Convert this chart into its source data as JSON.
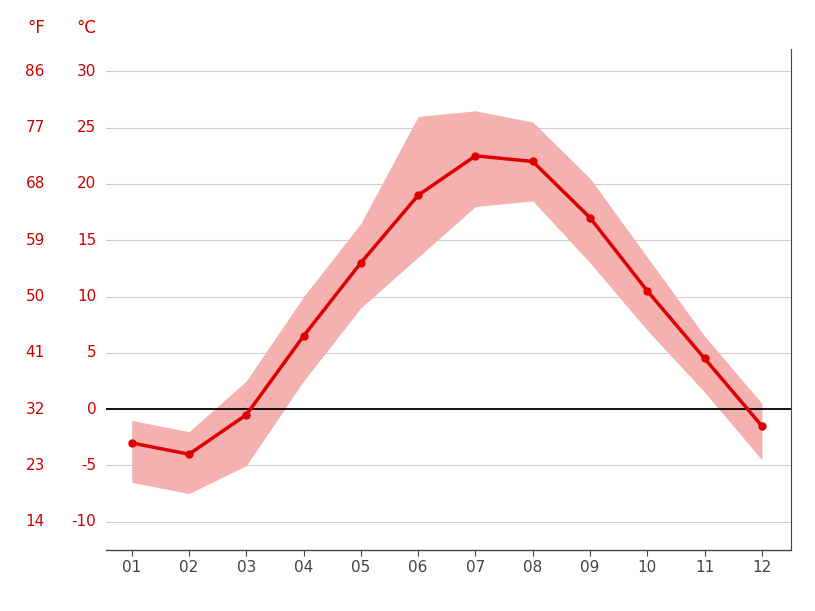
{
  "months": [
    1,
    2,
    3,
    4,
    5,
    6,
    7,
    8,
    9,
    10,
    11,
    12
  ],
  "month_labels": [
    "01",
    "02",
    "03",
    "04",
    "05",
    "06",
    "07",
    "08",
    "09",
    "10",
    "11",
    "12"
  ],
  "avg_temp_c": [
    -3.0,
    -4.0,
    -0.5,
    6.5,
    13.0,
    19.0,
    22.5,
    22.0,
    17.0,
    10.5,
    4.5,
    -1.5
  ],
  "max_temp_c": [
    -1.0,
    -2.0,
    2.5,
    10.0,
    16.5,
    26.0,
    26.5,
    25.5,
    20.5,
    13.5,
    6.5,
    0.5
  ],
  "min_temp_c": [
    -6.5,
    -7.5,
    -5.0,
    2.5,
    9.0,
    13.5,
    18.0,
    18.5,
    13.0,
    7.0,
    1.5,
    -4.5
  ],
  "line_color": "#dd0000",
  "band_color": "#f5b0b0",
  "zero_line_color": "#000000",
  "grid_color": "#cccccc",
  "label_color": "#cc0000",
  "background_color": "#ffffff",
  "yticks_c": [
    -10,
    -5,
    0,
    5,
    10,
    15,
    20,
    25,
    30
  ],
  "yticks_f": [
    14,
    23,
    32,
    41,
    50,
    59,
    68,
    77,
    86
  ],
  "ylim": [
    -12.5,
    32
  ],
  "xlim_left": 0.55,
  "xlim_right": 12.5
}
